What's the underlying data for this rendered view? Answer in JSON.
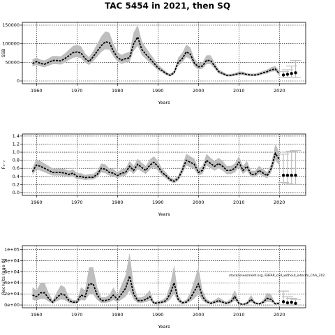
{
  "title": "TAC 5454 in 2021, then SQ",
  "chart_data": [
    {
      "type": "line",
      "ylabel": "SSB",
      "xlabel": "Years",
      "grid": true,
      "line_color": "#000000",
      "band_color": "#bebebe",
      "forecast_color": "#000000",
      "errorbar_color": "#bebebe",
      "xlim": [
        1956.5,
        2026.5
      ],
      "xticks": [
        1960,
        1970,
        1980,
        1990,
        2000,
        2010,
        2020
      ],
      "ylim": [
        -7500,
        157500
      ],
      "yticks": [
        0,
        50000,
        100000,
        150000
      ],
      "x": [
        1959,
        1960,
        1961,
        1962,
        1963,
        1964,
        1965,
        1966,
        1967,
        1968,
        1969,
        1970,
        1971,
        1972,
        1973,
        1974,
        1975,
        1976,
        1977,
        1978,
        1979,
        1980,
        1981,
        1982,
        1983,
        1984,
        1985,
        1986,
        1987,
        1988,
        1989,
        1990,
        1991,
        1992,
        1993,
        1994,
        1995,
        1996,
        1997,
        1998,
        1999,
        2000,
        2001,
        2002,
        2003,
        2004,
        2005,
        2006,
        2007,
        2008,
        2009,
        2010,
        2011,
        2012,
        2013,
        2014,
        2015,
        2016,
        2017,
        2018,
        2019,
        2020
      ],
      "values": [
        47000,
        52000,
        47000,
        45000,
        50000,
        55000,
        55000,
        54000,
        60000,
        68000,
        76000,
        78000,
        75000,
        60000,
        52000,
        65000,
        80000,
        95000,
        105000,
        103000,
        80000,
        63000,
        56000,
        60000,
        62000,
        100000,
        118000,
        85000,
        72000,
        60000,
        48000,
        35000,
        28000,
        20000,
        15000,
        22000,
        50000,
        60000,
        78000,
        72000,
        48000,
        38000,
        40000,
        55000,
        55000,
        40000,
        25000,
        20000,
        15000,
        15000,
        17000,
        20000,
        20000,
        17000,
        16000,
        16000,
        18000,
        22000,
        25000,
        30000,
        32000,
        20000
      ],
      "lower": [
        39000,
        43000,
        39000,
        37000,
        41000,
        45000,
        45000,
        44000,
        49000,
        56000,
        62000,
        64000,
        61000,
        49000,
        43000,
        53000,
        65000,
        78000,
        85000,
        84000,
        66000,
        52000,
        46000,
        49000,
        51000,
        80000,
        95000,
        70000,
        59000,
        49000,
        39000,
        29000,
        23000,
        16000,
        12000,
        18000,
        41000,
        49000,
        64000,
        59000,
        39000,
        31000,
        33000,
        45000,
        45000,
        33000,
        20000,
        16000,
        12000,
        12000,
        14000,
        16000,
        16000,
        14000,
        13000,
        13000,
        15000,
        18000,
        20000,
        25000,
        26000,
        14000
      ],
      "upper": [
        58000,
        63000,
        57000,
        55000,
        61000,
        67000,
        67000,
        66000,
        74000,
        84000,
        94000,
        97000,
        93000,
        74000,
        64000,
        80000,
        100000,
        120000,
        133000,
        130000,
        100000,
        78000,
        70000,
        75000,
        78000,
        130000,
        150000,
        108000,
        90000,
        75000,
        60000,
        44000,
        35000,
        25000,
        19000,
        28000,
        63000,
        75000,
        98000,
        90000,
        60000,
        48000,
        50000,
        69000,
        69000,
        50000,
        31000,
        25000,
        19000,
        19000,
        21000,
        25000,
        25000,
        21000,
        20000,
        20000,
        23000,
        27000,
        31000,
        37000,
        40000,
        27000
      ],
      "forecast": {
        "x": [
          2021,
          2022,
          2023,
          2024
        ],
        "values": [
          16000,
          18000,
          20000,
          22000
        ],
        "lower": [
          10000,
          10000,
          10000,
          10000
        ],
        "upper": [
          25000,
          30000,
          40000,
          55000
        ]
      }
    },
    {
      "type": "line",
      "ylabel": "F₃₋₇",
      "xlabel": "Years",
      "grid": true,
      "line_color": "#000000",
      "band_color": "#bebebe",
      "forecast_color": "#000000",
      "errorbar_color": "#bebebe",
      "xlim": [
        1956.5,
        2026.5
      ],
      "xticks": [
        1960,
        1970,
        1980,
        1990,
        2000,
        2010,
        2020
      ],
      "ylim": [
        -0.07,
        1.45
      ],
      "yticks": [
        {
          "value": 0,
          "label": "0.0"
        },
        0.2,
        0.4,
        0.6,
        0.8,
        {
          "value": 1,
          "label": "1.0"
        },
        1.2,
        1.4
      ],
      "x": [
        1959,
        1960,
        1961,
        1962,
        1963,
        1964,
        1965,
        1966,
        1967,
        1968,
        1969,
        1970,
        1971,
        1972,
        1973,
        1974,
        1975,
        1976,
        1977,
        1978,
        1979,
        1980,
        1981,
        1982,
        1983,
        1984,
        1985,
        1986,
        1987,
        1988,
        1989,
        1990,
        1991,
        1992,
        1993,
        1994,
        1995,
        1996,
        1997,
        1998,
        1999,
        2000,
        2001,
        2002,
        2003,
        2004,
        2005,
        2006,
        2007,
        2008,
        2009,
        2010,
        2011,
        2012,
        2013,
        2014,
        2015,
        2016,
        2017,
        2018,
        2019,
        2020
      ],
      "values": [
        0.52,
        0.68,
        0.65,
        0.6,
        0.55,
        0.5,
        0.5,
        0.5,
        0.48,
        0.45,
        0.48,
        0.4,
        0.4,
        0.37,
        0.38,
        0.38,
        0.45,
        0.6,
        0.58,
        0.5,
        0.48,
        0.42,
        0.48,
        0.5,
        0.65,
        0.55,
        0.7,
        0.62,
        0.55,
        0.68,
        0.75,
        0.65,
        0.5,
        0.42,
        0.32,
        0.28,
        0.35,
        0.55,
        0.8,
        0.75,
        0.7,
        0.5,
        0.55,
        0.8,
        0.72,
        0.65,
        0.72,
        0.65,
        0.55,
        0.55,
        0.6,
        0.75,
        0.55,
        0.65,
        0.45,
        0.45,
        0.55,
        0.48,
        0.42,
        0.6,
        0.97,
        0.82
      ],
      "lower": [
        0.44,
        0.57,
        0.54,
        0.5,
        0.46,
        0.42,
        0.42,
        0.42,
        0.4,
        0.38,
        0.4,
        0.33,
        0.33,
        0.31,
        0.32,
        0.32,
        0.38,
        0.5,
        0.48,
        0.42,
        0.4,
        0.35,
        0.4,
        0.42,
        0.54,
        0.46,
        0.58,
        0.52,
        0.46,
        0.57,
        0.63,
        0.54,
        0.42,
        0.35,
        0.27,
        0.23,
        0.29,
        0.46,
        0.67,
        0.63,
        0.58,
        0.42,
        0.46,
        0.67,
        0.6,
        0.54,
        0.6,
        0.54,
        0.46,
        0.46,
        0.5,
        0.63,
        0.46,
        0.54,
        0.38,
        0.38,
        0.46,
        0.4,
        0.35,
        0.5,
        0.8,
        0.67
      ],
      "upper": [
        0.62,
        0.82,
        0.78,
        0.72,
        0.66,
        0.6,
        0.6,
        0.6,
        0.58,
        0.54,
        0.58,
        0.48,
        0.48,
        0.44,
        0.46,
        0.46,
        0.54,
        0.72,
        0.7,
        0.6,
        0.58,
        0.5,
        0.58,
        0.6,
        0.78,
        0.66,
        0.84,
        0.74,
        0.66,
        0.82,
        0.9,
        0.78,
        0.6,
        0.5,
        0.38,
        0.34,
        0.42,
        0.66,
        0.96,
        0.9,
        0.84,
        0.6,
        0.66,
        0.96,
        0.86,
        0.78,
        0.86,
        0.78,
        0.66,
        0.66,
        0.72,
        0.9,
        0.66,
        0.78,
        0.54,
        0.54,
        0.66,
        0.58,
        0.5,
        0.72,
        1.2,
        1.0
      ],
      "forecast": {
        "x": [
          2021,
          2022,
          2023,
          2024
        ],
        "values": [
          0.43,
          0.43,
          0.43,
          0.43
        ],
        "lower": [
          0.25,
          0.22,
          0.2,
          0.2
        ],
        "upper": [
          0.95,
          1.0,
          1.02,
          1.04
        ]
      }
    },
    {
      "type": "line",
      "ylabel": "Recruits (age 0)",
      "xlabel": "Years",
      "grid": true,
      "line_color": "#000000",
      "band_color": "#bebebe",
      "forecast_color": "#000000",
      "errorbar_color": "#bebebe",
      "annotation": "stockassessment.org, EBFAP_cod_without_interim_CAA_202",
      "xlim": [
        1956.5,
        2026.5
      ],
      "xticks": [
        1960,
        1970,
        1980,
        1990,
        2000,
        2010,
        2020
      ],
      "ylim": [
        -5000,
        107000
      ],
      "yticks": [
        {
          "value": 0,
          "label": "0e+00"
        },
        {
          "value": 20000,
          "label": "2e+04"
        },
        {
          "value": 40000,
          "label": "4e+04"
        },
        {
          "value": 60000,
          "label": "6e+04"
        },
        {
          "value": 80000,
          "label": "8e+04"
        },
        {
          "value": 100000,
          "label": "1e+05"
        }
      ],
      "x": [
        1959,
        1960,
        1961,
        1962,
        1963,
        1964,
        1965,
        1966,
        1967,
        1968,
        1969,
        1970,
        1971,
        1972,
        1973,
        1974,
        1975,
        1976,
        1977,
        1978,
        1979,
        1980,
        1981,
        1982,
        1983,
        1984,
        1985,
        1986,
        1987,
        1988,
        1989,
        1990,
        1991,
        1992,
        1993,
        1994,
        1995,
        1996,
        1997,
        1998,
        1999,
        2000,
        2001,
        2002,
        2003,
        2004,
        2005,
        2006,
        2007,
        2008,
        2009,
        2010,
        2011,
        2012,
        2013,
        2014,
        2015,
        2016,
        2017,
        2018,
        2019,
        2020
      ],
      "values": [
        18000,
        15000,
        22000,
        22000,
        12000,
        5000,
        13000,
        20000,
        18000,
        8000,
        5000,
        5000,
        18000,
        15000,
        38000,
        38000,
        18000,
        8000,
        8000,
        10000,
        18000,
        10000,
        20000,
        30000,
        52000,
        20000,
        8000,
        8000,
        10000,
        15000,
        3000,
        4000,
        5000,
        8000,
        20000,
        40000,
        10000,
        4000,
        5000,
        12000,
        25000,
        38000,
        15000,
        6000,
        3000,
        5000,
        8000,
        5000,
        3000,
        6000,
        15000,
        3000,
        1000,
        3000,
        10000,
        3000,
        2000,
        5000,
        12000,
        10000,
        2000,
        3000
      ],
      "lower": [
        9000,
        8000,
        11000,
        11000,
        6000,
        2500,
        7000,
        10000,
        9000,
        4000,
        2500,
        2500,
        9000,
        8000,
        19000,
        19000,
        9000,
        4000,
        4000,
        5000,
        9000,
        5000,
        10000,
        15000,
        26000,
        10000,
        4000,
        4000,
        5000,
        8000,
        1500,
        2000,
        2500,
        4000,
        10000,
        20000,
        5000,
        2000,
        2500,
        6000,
        12000,
        19000,
        8000,
        3000,
        1500,
        2500,
        4000,
        2500,
        1500,
        3000,
        8000,
        1500,
        500,
        1500,
        5000,
        1500,
        1000,
        2500,
        6000,
        5000,
        1000,
        1000
      ],
      "upper": [
        32000,
        27000,
        40000,
        40000,
        22000,
        9000,
        23000,
        36000,
        32000,
        14000,
        9000,
        9000,
        32000,
        27000,
        68000,
        68000,
        32000,
        14000,
        14000,
        18000,
        32000,
        18000,
        36000,
        54000,
        94000,
        36000,
        14000,
        14000,
        18000,
        27000,
        6000,
        7000,
        9000,
        14000,
        36000,
        72000,
        18000,
        7000,
        9000,
        22000,
        45000,
        68000,
        27000,
        11000,
        6000,
        9000,
        14000,
        9000,
        6000,
        11000,
        27000,
        6000,
        2000,
        6000,
        18000,
        6000,
        4000,
        9000,
        22000,
        18000,
        4000,
        6000
      ],
      "forecast": {
        "x": [
          2021,
          2022,
          2023,
          2024
        ],
        "values": [
          6000,
          4000,
          5000,
          3000
        ],
        "lower": [
          0,
          0,
          0,
          0
        ],
        "upper": [
          25000,
          15000,
          12000,
          10000
        ]
      }
    }
  ]
}
